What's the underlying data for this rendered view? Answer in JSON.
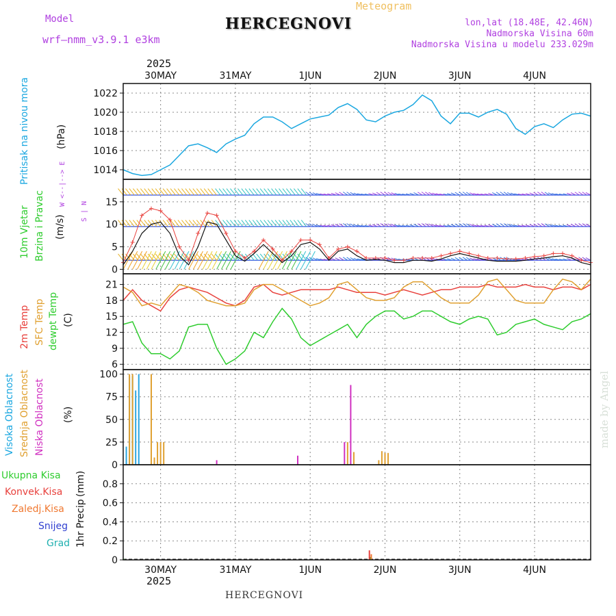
{
  "header": {
    "model_label": "Model",
    "model_name": "wrf—nmm_v3.9.1  e3km",
    "title": "HERCEGNOVI",
    "subtitle": "Meteogram",
    "coords": "lon,lat (18.48E, 42.46N)",
    "elevation": "Nadmorska Visina 60m",
    "model_elevation": "Nadmorska Visina u modelu 233.029m",
    "year_top": "2025",
    "footer_title": "HERCEGNOVI",
    "year_bottom": "2025",
    "credit": "made by Angel"
  },
  "colors": {
    "pressure": "#1aa7e0",
    "temp2m": "#e8403c",
    "sfc": "#e0a030",
    "dewpt": "#2ecc2e",
    "high_cloud": "#2aa5e0",
    "mid_cloud": "#e0a030",
    "low_cloud": "#d030c0",
    "purple": "#b040e0",
    "grid": "#888888"
  },
  "chart_data": [
    {
      "type": "line",
      "id": "pressure",
      "ylabel_main": "Pritisak na nivou mora",
      "ylabel_unit": "(hPa)",
      "ylim": [
        1013,
        1023
      ],
      "yticks": [
        "1014",
        "1016",
        "1018",
        "1020",
        "1022"
      ],
      "x_day_labels": [
        "30MAY",
        "31MAY",
        "1JUN",
        "2JUN",
        "3JUN",
        "4JUN"
      ],
      "x": [
        0,
        3,
        6,
        9,
        12,
        15,
        18,
        21,
        24,
        27,
        30,
        33,
        36,
        39,
        42,
        45,
        48,
        51,
        54,
        57,
        60,
        63,
        66,
        69,
        72,
        75,
        78,
        81,
        84,
        87,
        90,
        93,
        96,
        99,
        102,
        105,
        108,
        111,
        114,
        117,
        120,
        123,
        126,
        129,
        132,
        135,
        138,
        141,
        144,
        147,
        150
      ],
      "values": [
        1014.0,
        1013.6,
        1013.4,
        1013.5,
        1014.0,
        1014.5,
        1015.5,
        1016.5,
        1016.7,
        1016.3,
        1015.8,
        1016.7,
        1017.2,
        1017.6,
        1018.8,
        1019.5,
        1019.5,
        1019.0,
        1018.3,
        1018.8,
        1019.3,
        1019.5,
        1019.7,
        1020.5,
        1020.9,
        1020.3,
        1019.2,
        1019.0,
        1019.6,
        1020.0,
        1020.2,
        1020.8,
        1021.8,
        1021.2,
        1019.6,
        1018.8,
        1019.9,
        1019.9,
        1019.5,
        1020.0,
        1020.3,
        1019.8,
        1018.3,
        1017.7,
        1018.5,
        1018.8,
        1018.4,
        1019.2,
        1019.8,
        1019.9,
        1019.6
      ]
    },
    {
      "type": "line",
      "id": "wind",
      "ylabel_main": "10m Vjetar",
      "ylabel_sub": "Brzina i Pravac",
      "ylabel_unit": "(m/s)",
      "compass_label": "W  <--|-->  E",
      "compass_sub": "S  |  N",
      "ylim": [
        -1,
        20
      ],
      "yticks": [
        "0",
        "5",
        "10",
        "15"
      ],
      "x": [
        0,
        3,
        6,
        9,
        12,
        15,
        18,
        21,
        24,
        27,
        30,
        33,
        36,
        39,
        42,
        45,
        48,
        51,
        54,
        57,
        60,
        63,
        66,
        69,
        72,
        75,
        78,
        81,
        84,
        87,
        90,
        93,
        96,
        99,
        102,
        105,
        108,
        111,
        114,
        117,
        120,
        123,
        126,
        129,
        132,
        135,
        138,
        141,
        144,
        147,
        150
      ],
      "values": [
        1.0,
        4.0,
        8.0,
        10.0,
        10.5,
        8.0,
        3.0,
        1.0,
        5.0,
        10.5,
        10.0,
        6.5,
        3.0,
        1.8,
        3.5,
        5.5,
        3.5,
        1.5,
        3.0,
        5.5,
        6.0,
        4.5,
        2.0,
        4.0,
        4.5,
        3.0,
        2.0,
        2.2,
        2.0,
        1.5,
        1.5,
        2.0,
        2.0,
        1.8,
        2.3,
        3.0,
        3.5,
        3.0,
        2.5,
        2.0,
        1.8,
        1.8,
        1.8,
        2.0,
        2.3,
        2.5,
        2.8,
        3.0,
        2.5,
        1.5,
        1.0
      ],
      "gust_values": [
        1.5,
        6.0,
        12.0,
        13.5,
        13.0,
        11.0,
        5.0,
        2.0,
        8.0,
        12.5,
        12.0,
        8.0,
        4.0,
        2.5,
        4.0,
        6.5,
        4.5,
        2.0,
        4.0,
        6.5,
        6.5,
        5.5,
        2.5,
        4.5,
        5.0,
        4.0,
        2.5,
        2.5,
        2.5,
        2.0,
        2.0,
        2.5,
        2.5,
        2.5,
        3.0,
        3.5,
        4.0,
        3.5,
        3.0,
        2.5,
        2.5,
        2.3,
        2.3,
        2.5,
        2.8,
        3.0,
        3.5,
        3.5,
        3.0,
        2.0,
        1.5
      ]
    },
    {
      "type": "line",
      "id": "temperature",
      "ylabel_a": "2m Temp",
      "ylabel_b": "SFC Temp",
      "ylabel_c": "dewpt Temp",
      "ylabel_unit": "(C)",
      "ylim": [
        5,
        23
      ],
      "yticks": [
        "6",
        "9",
        "12",
        "15",
        "18",
        "21"
      ],
      "x": [
        0,
        3,
        6,
        9,
        12,
        15,
        18,
        21,
        24,
        27,
        30,
        33,
        36,
        39,
        42,
        45,
        48,
        51,
        54,
        57,
        60,
        63,
        66,
        69,
        72,
        75,
        78,
        81,
        84,
        87,
        90,
        93,
        96,
        99,
        102,
        105,
        108,
        111,
        114,
        117,
        120,
        123,
        126,
        129,
        132,
        135,
        138,
        141,
        144,
        147,
        150
      ],
      "series": [
        {
          "name": "2m Temp",
          "values": [
            18.0,
            20.0,
            18.0,
            17.0,
            16.0,
            18.5,
            20.0,
            20.5,
            20.0,
            19.5,
            18.5,
            17.5,
            17.0,
            18.0,
            20.5,
            21.0,
            19.5,
            19.0,
            19.5,
            20.0,
            20.0,
            20.0,
            20.0,
            20.5,
            20.0,
            19.5,
            19.5,
            19.5,
            19.0,
            19.5,
            20.0,
            19.5,
            19.0,
            19.5,
            20.0,
            20.0,
            20.5,
            20.5,
            20.5,
            21.0,
            20.5,
            20.5,
            20.5,
            21.0,
            20.5,
            20.5,
            20.0,
            20.5,
            20.5,
            20.0,
            21.0
          ]
        },
        {
          "name": "SFC Temp",
          "values": [
            20.5,
            19.5,
            17.0,
            17.5,
            17.0,
            19.0,
            21.0,
            20.5,
            19.5,
            18.0,
            17.5,
            17.0,
            17.0,
            17.5,
            20.0,
            21.0,
            21.0,
            20.0,
            19.0,
            18.0,
            17.0,
            17.5,
            18.5,
            21.0,
            21.5,
            20.0,
            18.5,
            18.0,
            18.0,
            18.5,
            20.5,
            21.5,
            21.5,
            20.0,
            18.5,
            17.5,
            17.5,
            17.5,
            19.0,
            21.5,
            22.0,
            20.0,
            18.0,
            17.5,
            17.5,
            17.5,
            20.0,
            22.0,
            21.5,
            20.0,
            22.0
          ]
        },
        {
          "name": "dewpt Temp",
          "values": [
            13.5,
            14.0,
            10.0,
            8.0,
            8.0,
            7.0,
            8.5,
            13.0,
            13.5,
            13.5,
            9.0,
            6.0,
            7.0,
            8.5,
            12.0,
            11.0,
            14.0,
            16.5,
            14.5,
            11.0,
            9.5,
            10.5,
            11.5,
            12.5,
            13.5,
            11.0,
            13.5,
            15.0,
            16.0,
            16.0,
            14.5,
            15.0,
            16.0,
            16.0,
            15.0,
            14.0,
            13.5,
            14.5,
            15.0,
            14.5,
            11.5,
            12.0,
            13.5,
            14.0,
            14.5,
            13.5,
            13.0,
            12.5,
            14.0,
            14.5,
            15.5
          ]
        }
      ]
    },
    {
      "type": "bar",
      "id": "clouds",
      "ylabel_a": "Visoka Oblacnost",
      "ylabel_b": "Srednja Oblacnost",
      "ylabel_c": "Niska Oblacnost",
      "ylabel_unit": "(%)",
      "ylim": [
        0,
        105
      ],
      "yticks": [
        "0",
        "25",
        "50",
        "75",
        "100"
      ],
      "series": [
        {
          "name": "Visoka",
          "x": [
            1,
            2,
            3,
            4,
            5
          ],
          "values": [
            20,
            98,
            98,
            82,
            100
          ]
        },
        {
          "name": "Srednja",
          "x": [
            2,
            3,
            9,
            10,
            11,
            12,
            13,
            72,
            74,
            82,
            83,
            84,
            85
          ],
          "values": [
            100,
            100,
            100,
            8,
            25,
            25,
            25,
            25,
            14,
            5,
            15,
            13,
            13
          ]
        },
        {
          "name": "Niska",
          "x": [
            30,
            56,
            71,
            73
          ],
          "values": [
            5,
            10,
            25,
            88
          ]
        }
      ]
    },
    {
      "type": "bar",
      "id": "precip",
      "ylabel_main": "1hr Precip",
      "ylabel_unit": "(mm)",
      "legend": [
        "Ukupna Kisa",
        "Konvek.Kisa",
        "Zaledj.Kisa",
        "Snijeg",
        "Grad"
      ],
      "ylim": [
        0,
        1.0
      ],
      "yticks": [
        "0",
        "0.2",
        "0.4",
        "0.6",
        "0.8"
      ],
      "series": [
        {
          "name": "Ukupna Kisa",
          "x": [
            0.2,
            79.2
          ],
          "values": [
            0.01,
            0.03
          ]
        },
        {
          "name": "Konvek.Kisa",
          "x": [
            79.0
          ],
          "values": [
            0.1
          ]
        },
        {
          "name": "Zaledj.Kisa",
          "x": [
            79.6
          ],
          "values": [
            0.06
          ]
        }
      ]
    }
  ]
}
